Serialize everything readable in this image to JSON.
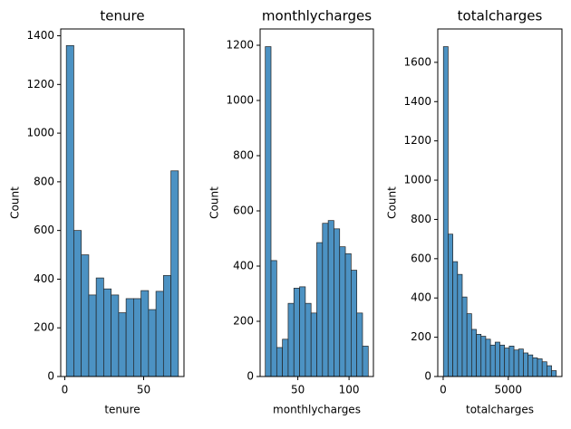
{
  "chart_data": [
    {
      "type": "histogram",
      "title": "tenure",
      "xlabel": "tenure",
      "ylabel": "Count",
      "color": "#4c92c3",
      "bins": [
        1,
        5.733,
        10.467,
        15.2,
        19.933,
        24.667,
        29.4,
        34.133,
        38.867,
        43.6,
        48.333,
        53.067,
        57.8,
        62.533,
        67.267,
        72
      ],
      "counts": [
        1360,
        600,
        500,
        335,
        405,
        360,
        335,
        262,
        320,
        320,
        353,
        275,
        350,
        415,
        845
      ],
      "xlim": [
        -2.55,
        75.55
      ],
      "xticks": [
        0,
        50
      ],
      "ylim": [
        0,
        1428
      ],
      "yticks": [
        0,
        200,
        400,
        600,
        800,
        1000,
        1200,
        1400
      ]
    },
    {
      "type": "histogram",
      "title": "monthlycharges",
      "xlabel": "monthlycharges",
      "ylabel": "Count",
      "color": "#4c92c3",
      "bins": [
        18.25,
        23.83,
        29.42,
        35.0,
        40.58,
        46.17,
        51.75,
        57.33,
        62.92,
        68.5,
        74.08,
        79.67,
        85.25,
        90.83,
        96.42,
        102.0,
        107.58,
        113.17,
        118.75
      ],
      "counts": [
        1195,
        420,
        105,
        135,
        265,
        320,
        325,
        265,
        230,
        485,
        555,
        565,
        535,
        470,
        445,
        385,
        230,
        110
      ],
      "xlim": [
        13.2,
        123.8
      ],
      "xticks": [
        50,
        100
      ],
      "ylim": [
        0,
        1259
      ],
      "yticks": [
        0,
        200,
        400,
        600,
        800,
        1000,
        1200
      ]
    },
    {
      "type": "histogram",
      "title": "totalcharges",
      "xlabel": "totalcharges",
      "ylabel": "Count",
      "color": "#4c92c3",
      "bins": [
        18.8,
        379.9,
        741.0,
        1102.1,
        1463.1,
        1824.2,
        2185.3,
        2546.4,
        2907.5,
        3268.5,
        3629.6,
        3990.7,
        4351.8,
        4712.9,
        5073.9,
        5435.0,
        5796.1,
        6157.2,
        6518.3,
        6879.3,
        7240.4,
        7601.5,
        7962.6,
        8323.7,
        8684.8
      ],
      "counts": [
        1680,
        725,
        585,
        520,
        405,
        320,
        240,
        215,
        205,
        190,
        160,
        175,
        160,
        145,
        155,
        135,
        140,
        120,
        110,
        95,
        90,
        75,
        55,
        30
      ],
      "xlim": [
        -414.5,
        9118.1
      ],
      "xticks": [
        0,
        5000
      ],
      "ylim": [
        0,
        1770
      ],
      "yticks": [
        0,
        200,
        400,
        600,
        800,
        1000,
        1200,
        1400,
        1600
      ]
    }
  ]
}
